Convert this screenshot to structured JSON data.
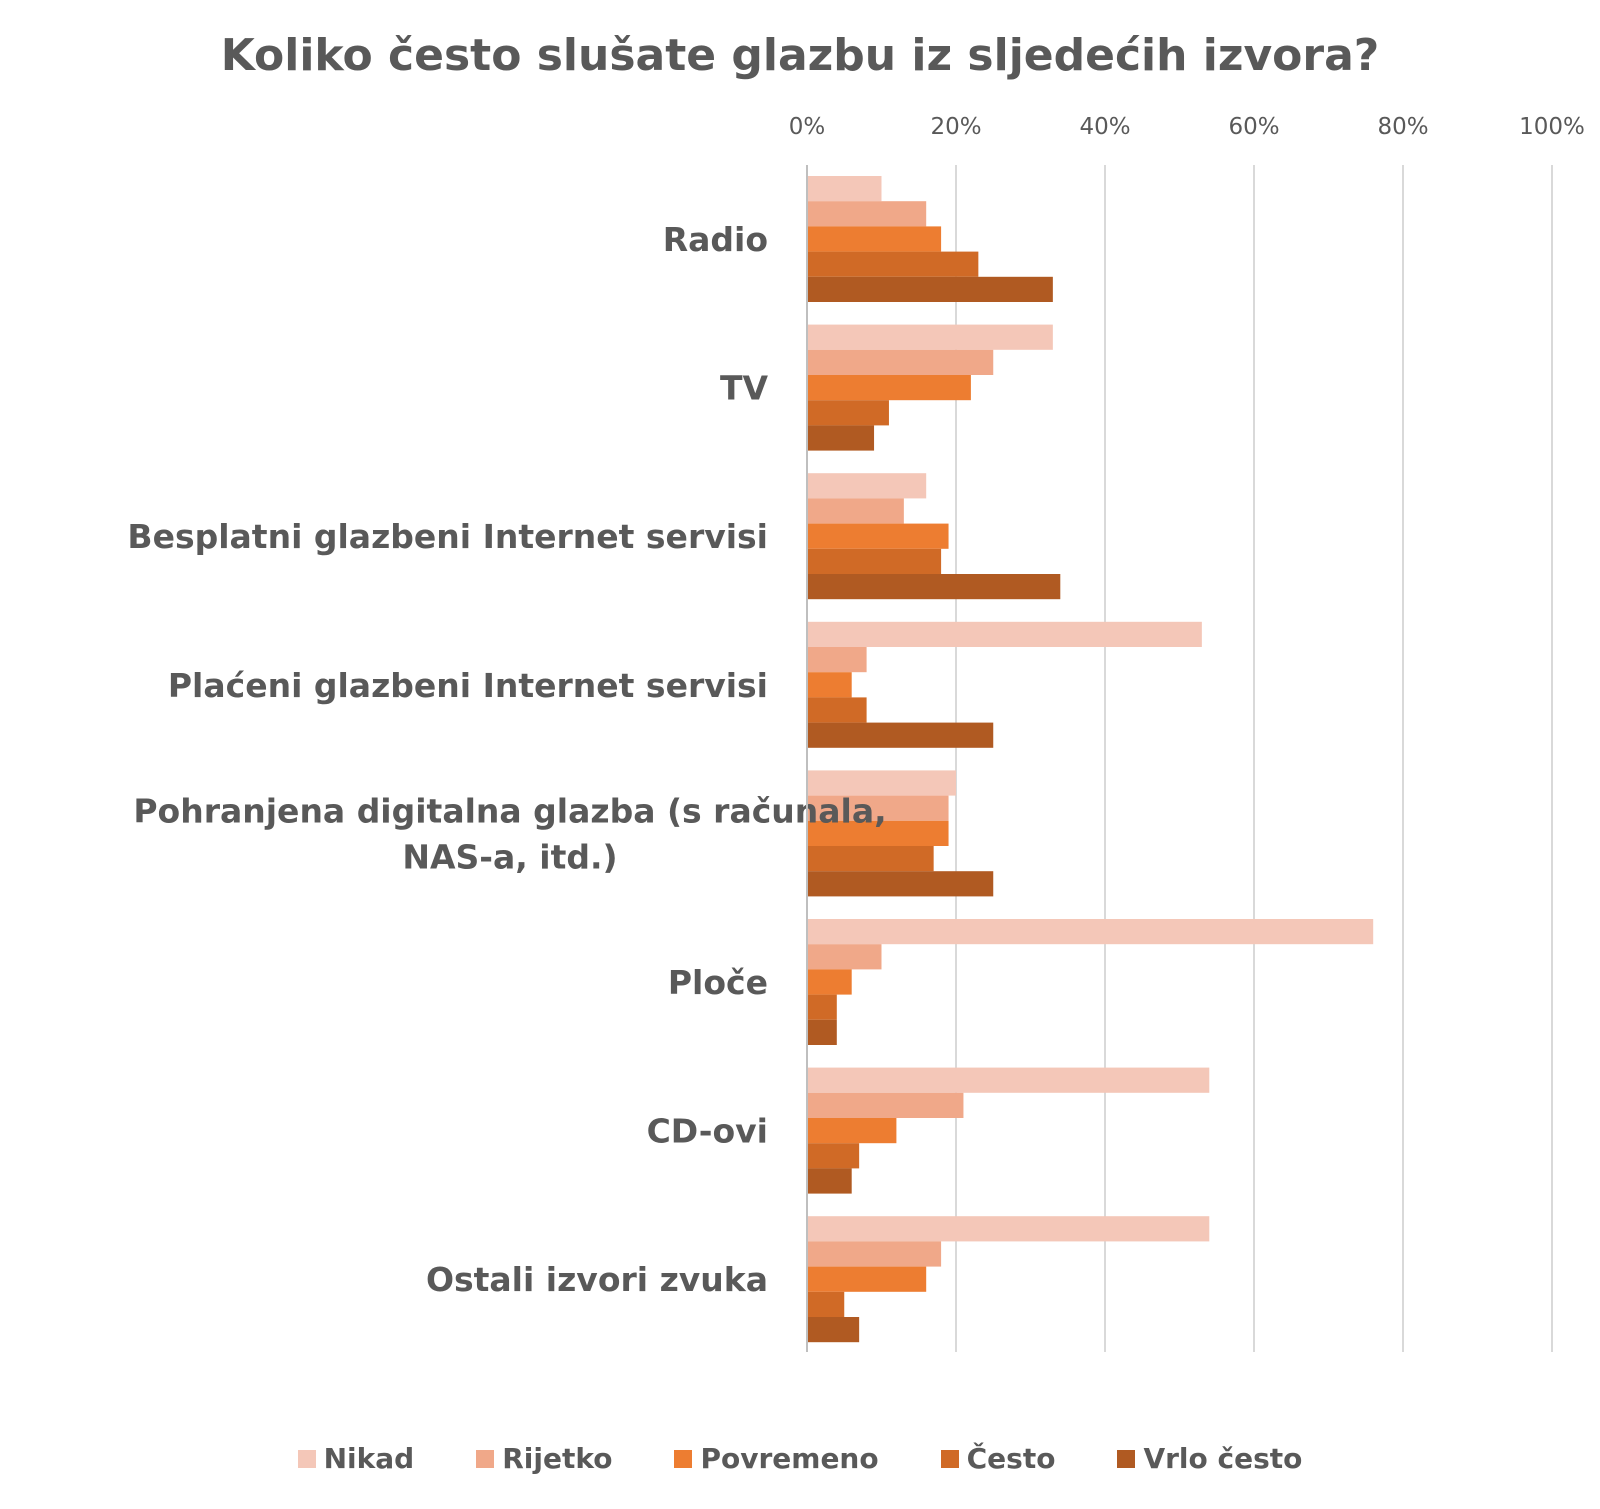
{
  "chart_data": {
    "type": "bar",
    "orientation": "horizontal",
    "title": "Koliko često slušate glazbu iz sljedećih izvora?",
    "xlabel": "",
    "ylabel": "",
    "xlim": [
      0,
      100
    ],
    "x_ticks": [
      "0%",
      "20%",
      "40%",
      "60%",
      "80%",
      "100%"
    ],
    "x_axis_position": "top",
    "grid": true,
    "legend_position": "bottom",
    "categories": [
      "Radio",
      "TV",
      "Besplatni glazbeni Internet servisi",
      "Plaćeni glazbeni Internet servisi",
      "Pohranjena digitalna glazba (s računala, NAS-a, itd.)",
      "Ploče",
      "CD-ovi",
      "Ostali izvori zvuka"
    ],
    "category_label_lines": [
      [
        "Radio"
      ],
      [
        "TV"
      ],
      [
        "Besplatni glazbeni Internet servisi"
      ],
      [
        "Plaćeni glazbeni Internet servisi"
      ],
      [
        "Pohranjena digitalna glazba (s računala,",
        "NAS-a, itd.)"
      ],
      [
        "Ploče"
      ],
      [
        "CD-ovi"
      ],
      [
        "Ostali izvori zvuka"
      ]
    ],
    "series": [
      {
        "name": "Nikad",
        "color": "#F4C7B8",
        "values": [
          10,
          33,
          16,
          53,
          20,
          76,
          54,
          54
        ]
      },
      {
        "name": "Rijetko",
        "color": "#F0A889",
        "values": [
          16,
          25,
          13,
          8,
          19,
          10,
          21,
          18
        ]
      },
      {
        "name": "Povremeno",
        "color": "#ED7D31",
        "values": [
          18,
          22,
          19,
          6,
          19,
          6,
          12,
          16
        ]
      },
      {
        "name": "Često",
        "color": "#D06A26",
        "values": [
          23,
          11,
          18,
          8,
          17,
          4,
          7,
          5
        ]
      },
      {
        "name": "Vrlo često",
        "color": "#B05A22",
        "values": [
          33,
          9,
          34,
          25,
          25,
          4,
          6,
          7
        ]
      }
    ]
  }
}
